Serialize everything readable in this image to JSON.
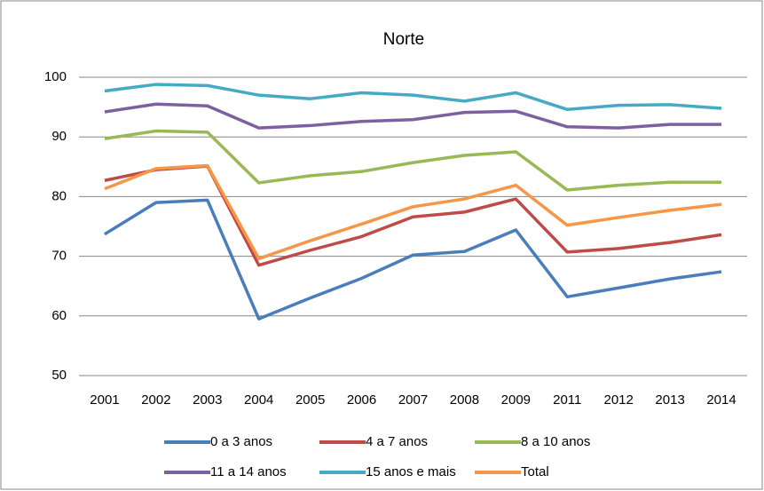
{
  "chart_data": {
    "type": "line",
    "title": "Norte",
    "categories": [
      "2001",
      "2002",
      "2003",
      "2004",
      "2005",
      "2006",
      "2007",
      "2008",
      "2009",
      "2011",
      "2012",
      "2013",
      "2014"
    ],
    "ylim": [
      50,
      100
    ],
    "yticks": [
      50,
      60,
      70,
      80,
      90,
      100
    ],
    "grid": true,
    "series": [
      {
        "name": "0 a 3 anos",
        "color": "#4a7ebb",
        "values": [
          73.7,
          79.0,
          79.4,
          59.5,
          63.0,
          66.3,
          70.2,
          70.8,
          74.4,
          63.2,
          64.7,
          66.2,
          67.4
        ]
      },
      {
        "name": "4 a 7 anos",
        "color": "#be4b48",
        "values": [
          82.7,
          84.5,
          85.1,
          68.5,
          71.0,
          73.3,
          76.6,
          77.4,
          79.6,
          70.7,
          71.3,
          72.3,
          73.6
        ]
      },
      {
        "name": "8 a 10 anos",
        "color": "#98b954",
        "values": [
          89.7,
          91.0,
          90.8,
          82.3,
          83.5,
          84.2,
          85.7,
          86.9,
          87.5,
          81.1,
          81.9,
          82.4,
          82.4
        ]
      },
      {
        "name": "11 a 14 anos",
        "color": "#7d60a0",
        "values": [
          94.2,
          95.5,
          95.2,
          91.5,
          91.9,
          92.6,
          92.9,
          94.1,
          94.3,
          91.7,
          91.5,
          92.1,
          92.1
        ]
      },
      {
        "name": "15 anos e mais",
        "color": "#46aac5",
        "values": [
          97.7,
          98.8,
          98.6,
          97.0,
          96.4,
          97.4,
          97.0,
          96.0,
          97.4,
          94.6,
          95.3,
          95.4,
          94.8
        ]
      },
      {
        "name": "Total",
        "color": "#f79646",
        "values": [
          81.3,
          84.7,
          85.2,
          69.6,
          72.6,
          75.4,
          78.3,
          79.6,
          81.9,
          75.2,
          76.5,
          77.7,
          78.7
        ]
      }
    ]
  }
}
